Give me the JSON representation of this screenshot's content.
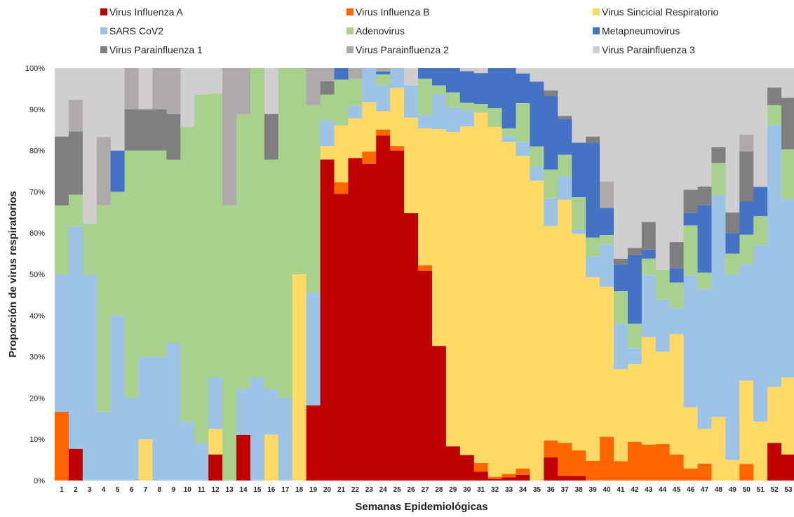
{
  "chart_data": {
    "type": "bar",
    "stacked": true,
    "normalized": true,
    "title": "",
    "xlabel": "Semanas Epidemiológicas",
    "ylabel": "Proporción de virus respiratorios",
    "ylim": [
      0,
      100
    ],
    "y_ticks": [
      "0%",
      "10%",
      "20%",
      "30%",
      "40%",
      "50%",
      "60%",
      "70%",
      "80%",
      "90%",
      "100%"
    ],
    "legend_position": "top",
    "grid": false,
    "categories": [
      "1",
      "2",
      "3",
      "4",
      "5",
      "6",
      "7",
      "8",
      "9",
      "10",
      "11",
      "12",
      "13",
      "14",
      "15",
      "16",
      "17",
      "18",
      "19",
      "20",
      "21",
      "22",
      "23",
      "24",
      "25",
      "26",
      "27",
      "28",
      "29",
      "30",
      "31",
      "32",
      "33",
      "34",
      "35",
      "36",
      "37",
      "38",
      "39",
      "40",
      "41",
      "42",
      "43",
      "44",
      "45",
      "46",
      "47",
      "48",
      "49",
      "50",
      "51",
      "52",
      "53"
    ],
    "series": [
      {
        "name": "Virus Influenza A",
        "color": "#C00000",
        "values": [
          0,
          7.7,
          0,
          0,
          0,
          0,
          0,
          0,
          0,
          0,
          0,
          6.3,
          0,
          11.1,
          0,
          0,
          0,
          0,
          18.2,
          80,
          69.4,
          77.8,
          73.1,
          80.8,
          80,
          64.8,
          51.2,
          34.1,
          8.3,
          5.8,
          2.1,
          0.4,
          0.8,
          1.4,
          0,
          5.6,
          1.1,
          1.1,
          0,
          0,
          0,
          0,
          0,
          0,
          0,
          0,
          0,
          0,
          0,
          0,
          0,
          9.1,
          6.3
        ]
      },
      {
        "name": "Virus Influenza B",
        "color": "#FF6600",
        "values": [
          16.7,
          0,
          0,
          0,
          0,
          0,
          0,
          0,
          0,
          0,
          0,
          0,
          0,
          0,
          0,
          0,
          0,
          0,
          0,
          0,
          2.8,
          0,
          2.9,
          1.4,
          1.1,
          0,
          1.3,
          0,
          0,
          0,
          2.1,
          0.5,
          0.8,
          1.5,
          0,
          4.1,
          8.0,
          6.2,
          4.8,
          9.8,
          4.7,
          9.4,
          8.7,
          8.3,
          6.3,
          2.9,
          4.1,
          0,
          0,
          4.0,
          0,
          0,
          0
        ]
      },
      {
        "name": "Virus Sincicial Respiratorio",
        "color": "#FFD966",
        "values": [
          0,
          0,
          0,
          0,
          0,
          0,
          10,
          0,
          0,
          0,
          0,
          6.2,
          0,
          0,
          0,
          11.1,
          0,
          50,
          0,
          3.4,
          13.8,
          9.6,
          11.4,
          4.3,
          14.1,
          23.2,
          33.4,
          54.9,
          76.2,
          74.8,
          84.1,
          84.8,
          80.2,
          75.8,
          72.7,
          52,
          59,
          52.5,
          44.5,
          33.6,
          22.3,
          18.8,
          26.1,
          20.9,
          29.1,
          14.8,
          8.4,
          15.4,
          5,
          20.0,
          14.3,
          13.6,
          18.7
        ]
      },
      {
        "name": "SARS CoV2",
        "color": "#9DC3E6",
        "values": [
          33.3,
          53.9,
          50,
          16.7,
          40,
          20,
          20,
          30,
          33.3,
          14.3,
          9,
          12.5,
          0,
          11.1,
          25,
          11.1,
          20,
          0,
          27.3,
          6.4,
          0,
          3,
          7.9,
          6.1,
          4.8,
          7.8,
          3.3,
          8.9,
          6.0,
          3.8,
          0,
          0,
          1.4,
          3.4,
          3.4,
          6.7,
          5.6,
          1.0,
          5.0,
          9.6,
          11,
          3.9,
          15,
          11.9,
          6.3,
          31.9,
          33.9,
          53.8,
          45,
          28.0,
          42.8,
          63.5,
          43.2
        ]
      },
      {
        "name": "Adenovirus",
        "color": "#A9D18E",
        "values": [
          16.7,
          7.7,
          12.3,
          50,
          30,
          60,
          50,
          50,
          44.4,
          71.4,
          84.6,
          68.8,
          66.7,
          66.6,
          75,
          55.6,
          80,
          50,
          45.5,
          6.4,
          11.1,
          6.5,
          0,
          2.5,
          0,
          0,
          8.8,
          2.2,
          3.6,
          1.6,
          2.1,
          4.6,
          1.8,
          9.4,
          4.9,
          7.0,
          5.3,
          7.9,
          4.6,
          2.0,
          7.9,
          5.9,
          4.0,
          6.7,
          6.2,
          12,
          4.0,
          7.8,
          5,
          7.0,
          7.0,
          4.8,
          12.1
        ]
      },
      {
        "name": "Metapneumovirus",
        "color": "#4472C4",
        "values": [
          0,
          0,
          0,
          0,
          10,
          0,
          0,
          0,
          0,
          0,
          0,
          0,
          0,
          0,
          0,
          0,
          0,
          0,
          0,
          0,
          2.8,
          0,
          0,
          0.7,
          0,
          0,
          2.6,
          4.4,
          5.9,
          7.2,
          7.4,
          9.7,
          14.6,
          7.2,
          15.7,
          17.8,
          8.6,
          13.2,
          22.9,
          6.1,
          6.4,
          16.6,
          2.2,
          0,
          3.5,
          3.0,
          16.4,
          0,
          5,
          8.0,
          7.1,
          0,
          0
        ]
      },
      {
        "name": "Virus Parainfluenza 1",
        "color": "#7F7F7F",
        "values": [
          16.7,
          15.3,
          0,
          0,
          0,
          10,
          10,
          10,
          11.1,
          0,
          0,
          0,
          0,
          0,
          0,
          11.1,
          0,
          0,
          0,
          3.3,
          0,
          0,
          0,
          0,
          0,
          0,
          0,
          0,
          0,
          0,
          0,
          0,
          0,
          0,
          0,
          1.4,
          0.8,
          0,
          1.6,
          0,
          1.5,
          1.8,
          6.7,
          0,
          6.3,
          5.6,
          4.5,
          3.8,
          5,
          12.0,
          0,
          4.3,
          12.5
        ]
      },
      {
        "name": "Virus Parainfluenza 2",
        "color": "#AEAAAA",
        "values": [
          0,
          7.7,
          0,
          16.6,
          0,
          10,
          0,
          10,
          11.1,
          0,
          0,
          0,
          33.3,
          11.2,
          0,
          0,
          0,
          0,
          9,
          3.3,
          0,
          2.6,
          0,
          0.8,
          0,
          0,
          0,
          0,
          0,
          0,
          0,
          0,
          0,
          0,
          0,
          0,
          0,
          0,
          0,
          5.9,
          0,
          0,
          0,
          0,
          0,
          0,
          0,
          0,
          0,
          4.0,
          0,
          0,
          0
        ]
      },
      {
        "name": "Virus Parainfluenza 3",
        "color": "#D0CECE",
        "values": [
          16.6,
          7.7,
          37.7,
          16.7,
          20,
          0,
          10,
          0,
          0,
          14.3,
          6.4,
          6.2,
          0,
          0,
          0,
          11.1,
          0,
          0,
          0,
          0,
          0,
          0,
          0,
          0,
          0,
          4.2,
          0,
          0,
          0,
          0.7,
          1.2,
          0,
          0,
          1.3,
          3.3,
          5.4,
          11.6,
          18.1,
          16.6,
          25.4,
          46.2,
          43.6,
          37.3,
          45.8,
          42.1,
          29.4,
          28.7,
          19.2,
          35,
          16.0,
          28.8,
          4.7,
          7.2
        ]
      }
    ]
  }
}
